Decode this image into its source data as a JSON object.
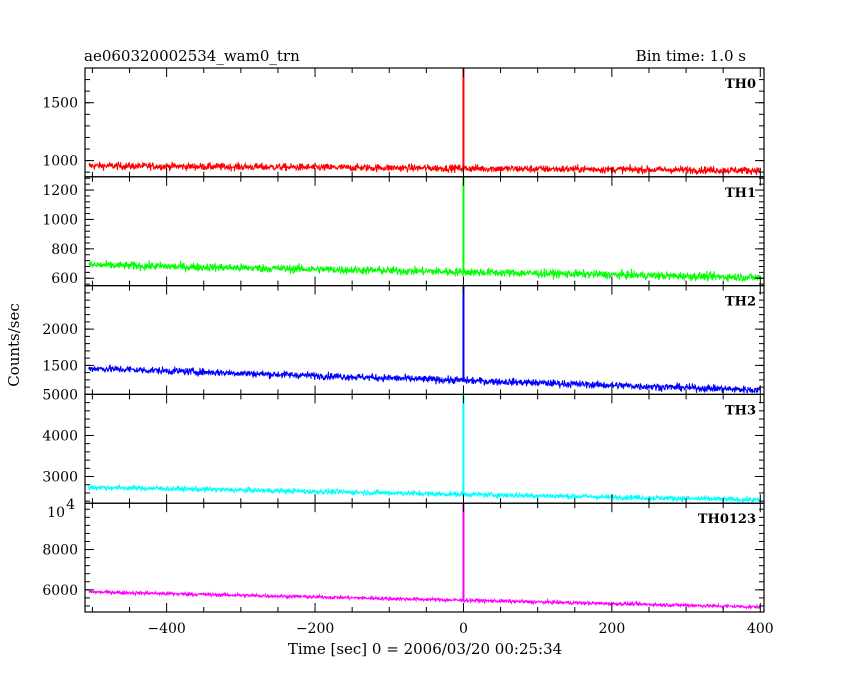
{
  "header": {
    "title": "ae060320002534_wam0_trn",
    "bin_time": "Bin time: 1.0 s"
  },
  "chart_data": {
    "type": "line",
    "xlabel": "Time [sec] 0 = 2006/03/20 00:25:34",
    "ylabel": "Counts/sec",
    "xlim": [
      -510,
      405
    ],
    "x_ticks": [
      -400,
      -200,
      0,
      200,
      400
    ],
    "x_tick_labels": [
      "−400",
      "−200",
      "0",
      "200",
      "400"
    ],
    "panels": [
      {
        "name": "TH0",
        "color": "#ff0000",
        "ylim": [
          860,
          1800
        ],
        "y_ticks": [
          1000,
          1500
        ],
        "y_tick_labels": [
          "1000",
          "1500"
        ],
        "trend": {
          "x": [
            -505,
            400
          ],
          "y": [
            955,
            915
          ]
        },
        "noise": 32,
        "spike": {
          "x": 0,
          "y": 1800
        }
      },
      {
        "name": "TH1",
        "color": "#00ff00",
        "ylim": [
          550,
          1290
        ],
        "y_ticks": [
          600,
          800,
          1000,
          1200
        ],
        "y_tick_labels": [
          "600",
          "800",
          "1000",
          "1200"
        ],
        "trend": {
          "x": [
            -505,
            400
          ],
          "y": [
            690,
            605
          ]
        },
        "noise": 28,
        "spike": {
          "x": 0,
          "y": 1290
        }
      },
      {
        "name": "TH2",
        "color": "#0000ff",
        "ylim": [
          1100,
          2600
        ],
        "y_ticks": [
          1500,
          2000
        ],
        "y_tick_labels": [
          "1500",
          "2000"
        ],
        "trend": {
          "x": [
            -505,
            400
          ],
          "y": [
            1460,
            1160
          ]
        },
        "noise": 50,
        "spike": {
          "x": 0,
          "y": 2600
        }
      },
      {
        "name": "TH3",
        "color": "#00ffff",
        "ylim": [
          2350,
          5000
        ],
        "y_ticks": [
          3000,
          4000,
          5000
        ],
        "y_tick_labels": [
          "3000",
          "4000",
          "5000"
        ],
        "trend": {
          "x": [
            -505,
            400
          ],
          "y": [
            2740,
            2430
          ]
        },
        "noise": 65,
        "spike": {
          "x": 0,
          "y": 5000
        }
      },
      {
        "name": "TH0123",
        "color": "#ff00ff",
        "ylim": [
          4900,
          10300
        ],
        "y_ticks": [
          6000,
          8000
        ],
        "y_tick_labels": [
          "6000",
          "8000"
        ],
        "y_top_label": "10",
        "y_top_label_exp": "4",
        "trend": {
          "x": [
            -505,
            400
          ],
          "y": [
            5900,
            5150
          ]
        },
        "noise": 90,
        "spike": {
          "x": 0,
          "y": 10300
        }
      }
    ]
  }
}
